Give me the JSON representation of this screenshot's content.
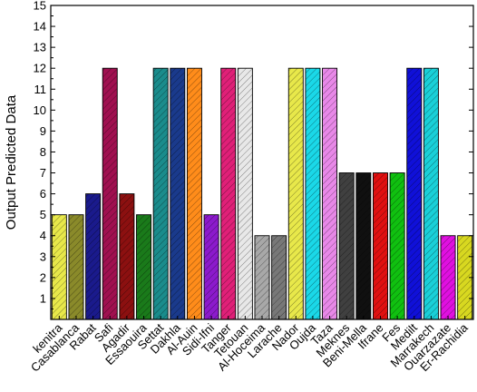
{
  "chart_data": {
    "type": "bar",
    "title": "",
    "xlabel": "",
    "ylabel": "Output Predicted Data",
    "ylim": [
      0,
      15
    ],
    "yticks": [
      1,
      2,
      3,
      4,
      5,
      6,
      7,
      8,
      9,
      10,
      11,
      12,
      13,
      14,
      15
    ],
    "grid": false,
    "legend": "none",
    "categories": [
      "kenitra",
      "Casablanca",
      "Rabat",
      "Safi",
      "Agadir",
      "Essaouira",
      "Settat",
      "Dakhla",
      "Al-Auin",
      "Sidi-Ifni",
      "Tanger",
      "Tetouan",
      "Al-Hoceima",
      "Larache",
      "Nador",
      "Oujda",
      "Taza",
      "Meknes",
      "Beni-Mella",
      "Ifrane",
      "Fes",
      "Medilt",
      "Marrakech",
      "Ouarzazate",
      "Er-Rachidia"
    ],
    "values": [
      5,
      5,
      6,
      12,
      6,
      5,
      12,
      12,
      12,
      5,
      12,
      12,
      4,
      4,
      12,
      12,
      12,
      7,
      7,
      7,
      7,
      12,
      12,
      4,
      4
    ],
    "colors": [
      "#e8e84a",
      "#8a8a2a",
      "#1a1a8c",
      "#a01050",
      "#8c1010",
      "#1a7a1a",
      "#1a8c8c",
      "#1a3a8c",
      "#ff8c1a",
      "#8c1acc",
      "#e02078",
      "#e8e8e8",
      "#a8a8a8",
      "#787878",
      "#e8e84a",
      "#1ad8e8",
      "#e888e8",
      "#404040",
      "#101010",
      "#e01010",
      "#10c010",
      "#1010d8",
      "#1ad0d8",
      "#e010e0",
      "#d8d820"
    ]
  }
}
